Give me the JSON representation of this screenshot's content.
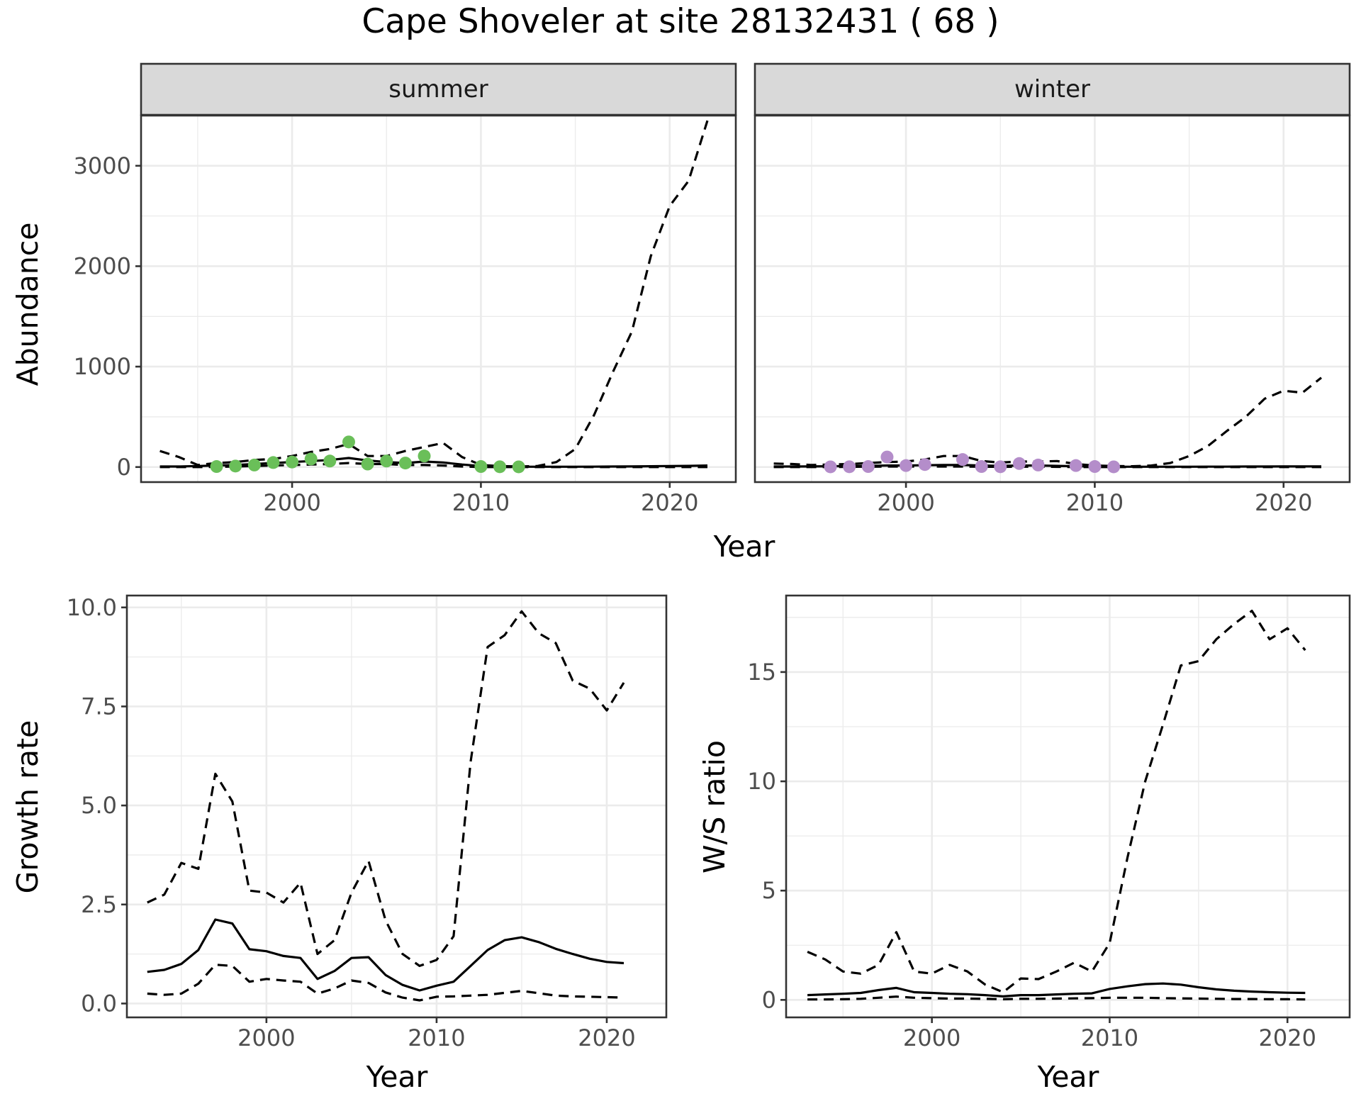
{
  "title": "Cape Shoveler at site 28132431 ( 68 )",
  "colors": {
    "summer_points": "#6abf59",
    "winter_points": "#b48dca",
    "line": "#000000"
  },
  "chart_data": [
    {
      "type": "line",
      "id": "abundance",
      "facets": [
        "summer",
        "winter"
      ],
      "xlabel": "Year",
      "ylabel": "Abundance",
      "xlim": [
        1992,
        2023.5
      ],
      "ylim": [
        -150,
        3500
      ],
      "xticks": [
        2000,
        2010,
        2020
      ],
      "yticks": [
        0,
        1000,
        2000,
        3000
      ],
      "grid": true,
      "panels": [
        {
          "facet": "summer",
          "point_color": "#6abf59",
          "x": [
            1993,
            1994,
            1995,
            1996,
            1997,
            1998,
            1999,
            2000,
            2001,
            2002,
            2003,
            2004,
            2005,
            2006,
            2007,
            2008,
            2009,
            2010,
            2011,
            2012,
            2013,
            2014,
            2015,
            2016,
            2017,
            2018,
            2019,
            2020,
            2021,
            2022
          ],
          "mean": [
            5,
            5,
            10,
            15,
            20,
            30,
            40,
            50,
            60,
            70,
            90,
            65,
            50,
            40,
            55,
            45,
            25,
            10,
            5,
            3,
            3,
            3,
            3,
            4,
            5,
            6,
            8,
            10,
            12,
            15
          ],
          "upper": [
            160,
            100,
            20,
            40,
            50,
            70,
            80,
            110,
            150,
            180,
            230,
            110,
            110,
            160,
            200,
            240,
            100,
            20,
            10,
            5,
            10,
            50,
            180,
            520,
            950,
            1350,
            2100,
            2600,
            2850,
            3450
          ],
          "lower": [
            0,
            0,
            0,
            2,
            5,
            10,
            15,
            20,
            25,
            30,
            40,
            30,
            30,
            20,
            20,
            15,
            5,
            0,
            0,
            0,
            0,
            0,
            0,
            0,
            0,
            0,
            0,
            0,
            0,
            0
          ],
          "points": [
            {
              "x": 1996,
              "y": 5
            },
            {
              "x": 1997,
              "y": 10
            },
            {
              "x": 1998,
              "y": 20
            },
            {
              "x": 1999,
              "y": 45
            },
            {
              "x": 2000,
              "y": 50
            },
            {
              "x": 2001,
              "y": 80
            },
            {
              "x": 2002,
              "y": 60
            },
            {
              "x": 2003,
              "y": 250
            },
            {
              "x": 2004,
              "y": 30
            },
            {
              "x": 2005,
              "y": 60
            },
            {
              "x": 2006,
              "y": 40
            },
            {
              "x": 2007,
              "y": 110
            },
            {
              "x": 2010,
              "y": 5
            },
            {
              "x": 2011,
              "y": 3
            },
            {
              "x": 2012,
              "y": 2
            }
          ]
        },
        {
          "facet": "winter",
          "point_color": "#b48dca",
          "x": [
            1993,
            1994,
            1995,
            1996,
            1997,
            1998,
            1999,
            2000,
            2001,
            2002,
            2003,
            2004,
            2005,
            2006,
            2007,
            2008,
            2009,
            2010,
            2011,
            2012,
            2013,
            2014,
            2015,
            2016,
            2017,
            2018,
            2019,
            2020,
            2021,
            2022
          ],
          "mean": [
            5,
            5,
            6,
            8,
            10,
            12,
            15,
            15,
            18,
            20,
            20,
            15,
            12,
            15,
            15,
            12,
            8,
            5,
            3,
            3,
            3,
            3,
            3,
            4,
            4,
            5,
            5,
            6,
            6,
            7
          ],
          "upper": [
            35,
            30,
            20,
            25,
            30,
            40,
            50,
            55,
            75,
            110,
            110,
            60,
            45,
            55,
            55,
            60,
            30,
            15,
            10,
            8,
            15,
            40,
            110,
            210,
            360,
            500,
            680,
            760,
            740,
            890
          ],
          "lower": [
            0,
            0,
            0,
            0,
            2,
            3,
            5,
            5,
            5,
            5,
            5,
            3,
            2,
            3,
            3,
            2,
            0,
            0,
            0,
            0,
            0,
            0,
            0,
            0,
            0,
            0,
            0,
            0,
            0,
            0
          ],
          "points": [
            {
              "x": 1996,
              "y": 2
            },
            {
              "x": 1997,
              "y": 3
            },
            {
              "x": 1998,
              "y": 5
            },
            {
              "x": 1999,
              "y": 100
            },
            {
              "x": 2000,
              "y": 15
            },
            {
              "x": 2001,
              "y": 25
            },
            {
              "x": 2003,
              "y": 75
            },
            {
              "x": 2004,
              "y": 5
            },
            {
              "x": 2005,
              "y": 3
            },
            {
              "x": 2006,
              "y": 35
            },
            {
              "x": 2007,
              "y": 20
            },
            {
              "x": 2009,
              "y": 15
            },
            {
              "x": 2010,
              "y": 5
            },
            {
              "x": 2011,
              "y": 2
            }
          ]
        }
      ]
    },
    {
      "type": "line",
      "id": "growth",
      "xlabel": "Year",
      "ylabel": "Growth rate",
      "xlim": [
        1991.8,
        2023.5
      ],
      "ylim": [
        -0.35,
        10.3
      ],
      "xticks": [
        2000,
        2010,
        2020
      ],
      "yticks": [
        0,
        2.5,
        5,
        7.5,
        10
      ],
      "ytick_labels": [
        "0.0",
        "2.5",
        "5.0",
        "7.5",
        "10.0"
      ],
      "grid": true,
      "x": [
        1993,
        1994,
        1995,
        1996,
        1997,
        1998,
        1999,
        2000,
        2001,
        2002,
        2003,
        2004,
        2005,
        2006,
        2007,
        2008,
        2009,
        2010,
        2011,
        2012,
        2013,
        2014,
        2015,
        2016,
        2017,
        2018,
        2019,
        2020,
        2021
      ],
      "mean": [
        0.8,
        0.85,
        1.0,
        1.35,
        2.12,
        2.02,
        1.37,
        1.32,
        1.2,
        1.15,
        0.62,
        0.82,
        1.15,
        1.17,
        0.72,
        0.47,
        0.33,
        0.45,
        0.55,
        0.95,
        1.35,
        1.6,
        1.67,
        1.55,
        1.38,
        1.25,
        1.13,
        1.05,
        1.02
      ],
      "upper": [
        2.55,
        2.75,
        3.55,
        3.4,
        5.8,
        5.1,
        2.85,
        2.8,
        2.55,
        3.05,
        1.25,
        1.6,
        2.8,
        3.6,
        2.1,
        1.25,
        0.95,
        1.1,
        1.7,
        6.1,
        9.0,
        9.3,
        9.9,
        9.35,
        9.1,
        8.15,
        7.95,
        7.4,
        8.1
      ],
      "lower": [
        0.25,
        0.22,
        0.25,
        0.5,
        0.98,
        0.95,
        0.55,
        0.62,
        0.58,
        0.55,
        0.25,
        0.38,
        0.58,
        0.52,
        0.28,
        0.15,
        0.08,
        0.17,
        0.18,
        0.2,
        0.22,
        0.27,
        0.32,
        0.26,
        0.2,
        0.18,
        0.17,
        0.16,
        0.15
      ]
    },
    {
      "type": "line",
      "id": "ratio",
      "xlabel": "Year",
      "ylabel": "W/S ratio",
      "xlim": [
        1991.8,
        2023.5
      ],
      "ylim": [
        -0.8,
        18.5
      ],
      "xticks": [
        2000,
        2010,
        2020
      ],
      "yticks": [
        0,
        5,
        10,
        15
      ],
      "grid": true,
      "x": [
        1993,
        1994,
        1995,
        1996,
        1997,
        1998,
        1999,
        2000,
        2001,
        2002,
        2003,
        2004,
        2005,
        2006,
        2007,
        2008,
        2009,
        2010,
        2011,
        2012,
        2013,
        2014,
        2015,
        2016,
        2017,
        2018,
        2019,
        2020,
        2021
      ],
      "mean": [
        0.22,
        0.25,
        0.28,
        0.32,
        0.45,
        0.55,
        0.35,
        0.32,
        0.28,
        0.26,
        0.22,
        0.16,
        0.22,
        0.22,
        0.25,
        0.28,
        0.3,
        0.5,
        0.62,
        0.72,
        0.75,
        0.7,
        0.58,
        0.48,
        0.42,
        0.38,
        0.35,
        0.33,
        0.32
      ],
      "upper": [
        2.2,
        1.85,
        1.3,
        1.2,
        1.6,
        3.1,
        1.3,
        1.2,
        1.6,
        1.3,
        0.7,
        0.35,
        0.98,
        0.95,
        1.3,
        1.7,
        1.3,
        2.6,
        6.5,
        10.0,
        12.6,
        15.3,
        15.5,
        16.5,
        17.2,
        17.8,
        16.5,
        17.0,
        16.0
      ],
      "lower": [
        0.02,
        0.02,
        0.03,
        0.05,
        0.1,
        0.15,
        0.1,
        0.08,
        0.06,
        0.06,
        0.05,
        0.03,
        0.05,
        0.05,
        0.06,
        0.07,
        0.08,
        0.1,
        0.1,
        0.1,
        0.08,
        0.07,
        0.06,
        0.05,
        0.04,
        0.04,
        0.03,
        0.03,
        0.02
      ]
    }
  ]
}
